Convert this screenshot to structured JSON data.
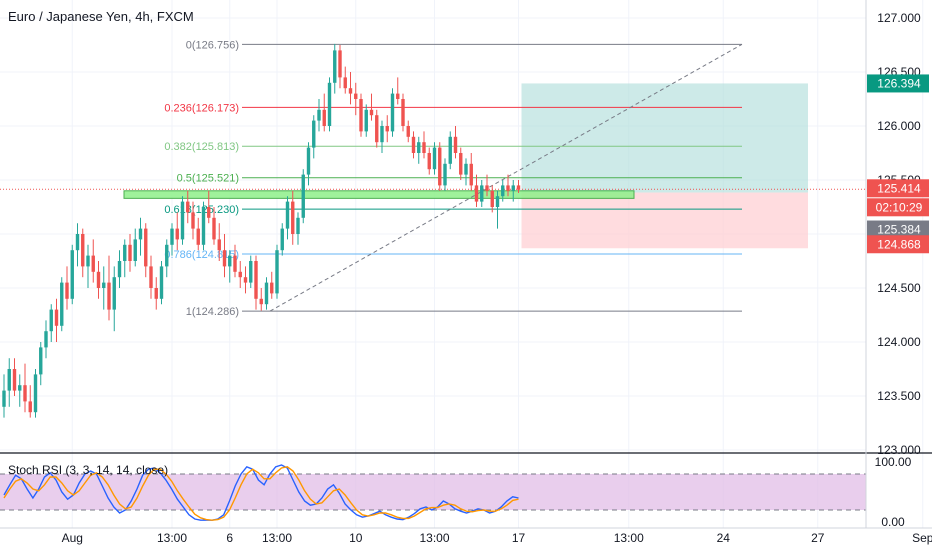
{
  "header": {
    "title": "Euro / Japanese Yen, 4h, FXCM"
  },
  "colors": {
    "bull": "#26a69a",
    "bear": "#ef5350",
    "fib_0": "#787b86",
    "fib_236": "#f23645",
    "fib_382": "#81c784",
    "fib_5": "#4caf50",
    "fib_618": "#089981",
    "fib_786": "#64b5f6",
    "fib_1": "#787b86",
    "profit_zone": "#b2dfdb",
    "loss_zone": "#ffcdd2",
    "support_zone": "#8ef08a",
    "stoch_k": "#2962ff",
    "stoch_d": "#ff9800",
    "stoch_band": "#e1bee7",
    "label_last": "#ef5350",
    "label_target": "#089981",
    "label_stop": "#ef5350",
    "label_entry": "#787b86"
  },
  "chart_data": [
    {
      "type": "candlestick",
      "title": "Euro / Japanese Yen, 4h, FXCM",
      "ylim": [
        122.95,
        127.15
      ],
      "y_ticks": [
        "127.000",
        "126.500",
        "126.000",
        "125.500",
        "125.000",
        "124.500",
        "124.000",
        "123.500",
        "123.000"
      ],
      "y_tick_values": [
        127.0,
        126.5,
        126.0,
        125.5,
        125.0,
        124.5,
        124.0,
        123.5,
        123.0
      ],
      "x_ticks": [
        "Aug",
        "13:00",
        "6",
        "13:00",
        "10",
        "13:00",
        "17",
        "13:00",
        "24",
        "27",
        "Sep"
      ],
      "x_tick_index": [
        13,
        32,
        43,
        52,
        67,
        82,
        98,
        119,
        137,
        155,
        175
      ],
      "candles": [
        [
          123.4,
          123.7,
          123.3,
          123.55
        ],
        [
          123.55,
          123.85,
          123.4,
          123.75
        ],
        [
          123.75,
          123.85,
          123.5,
          123.55
        ],
        [
          123.55,
          123.7,
          123.4,
          123.6
        ],
        [
          123.6,
          123.8,
          123.35,
          123.45
        ],
        [
          123.45,
          123.6,
          123.3,
          123.35
        ],
        [
          123.35,
          123.75,
          123.3,
          123.7
        ],
        [
          123.7,
          124.0,
          123.6,
          123.95
        ],
        [
          123.95,
          124.2,
          123.85,
          124.1
        ],
        [
          124.1,
          124.35,
          124.0,
          124.3
        ],
        [
          124.3,
          124.4,
          124.0,
          124.15
        ],
        [
          124.15,
          124.6,
          124.1,
          124.55
        ],
        [
          124.55,
          124.7,
          124.3,
          124.4
        ],
        [
          124.4,
          124.9,
          124.35,
          124.85
        ],
        [
          124.85,
          125.1,
          124.7,
          125.0
        ],
        [
          125.0,
          125.05,
          124.6,
          124.7
        ],
        [
          124.7,
          124.9,
          124.5,
          124.8
        ],
        [
          124.8,
          124.95,
          124.55,
          124.65
        ],
        [
          124.65,
          124.75,
          124.4,
          124.5
        ],
        [
          124.5,
          124.7,
          124.3,
          124.55
        ],
        [
          124.55,
          124.8,
          124.2,
          124.3
        ],
        [
          124.3,
          124.7,
          124.1,
          124.6
        ],
        [
          124.6,
          124.85,
          124.5,
          124.75
        ],
        [
          124.75,
          124.95,
          124.6,
          124.9
        ],
        [
          124.9,
          125.0,
          124.65,
          124.75
        ],
        [
          124.75,
          125.05,
          124.7,
          124.95
        ],
        [
          124.95,
          125.15,
          124.8,
          125.05
        ],
        [
          125.05,
          125.1,
          124.6,
          124.7
        ],
        [
          124.7,
          124.8,
          124.4,
          124.5
        ],
        [
          124.5,
          124.6,
          124.3,
          124.4
        ],
        [
          124.4,
          124.75,
          124.35,
          124.7
        ],
        [
          124.7,
          124.95,
          124.6,
          124.9
        ],
        [
          124.9,
          125.1,
          124.8,
          125.05
        ],
        [
          125.05,
          125.2,
          124.85,
          124.95
        ],
        [
          124.95,
          125.35,
          124.9,
          125.3
        ],
        [
          125.3,
          125.4,
          125.1,
          125.2
        ],
        [
          125.2,
          125.3,
          124.95,
          125.05
        ],
        [
          125.05,
          125.15,
          124.85,
          124.9
        ],
        [
          124.9,
          125.3,
          124.85,
          125.25
        ],
        [
          125.25,
          125.4,
          125.1,
          125.15
        ],
        [
          125.15,
          125.25,
          124.9,
          124.95
        ],
        [
          124.95,
          125.1,
          124.75,
          124.85
        ],
        [
          124.85,
          125.0,
          124.6,
          124.7
        ],
        [
          124.7,
          124.85,
          124.55,
          124.8
        ],
        [
          124.8,
          124.9,
          124.6,
          124.65
        ],
        [
          124.65,
          124.75,
          124.5,
          124.6
        ],
        [
          124.6,
          124.7,
          124.45,
          124.55
        ],
        [
          124.55,
          124.8,
          124.5,
          124.75
        ],
        [
          124.75,
          124.8,
          124.3,
          124.4
        ],
        [
          124.4,
          124.5,
          124.29,
          124.35
        ],
        [
          124.35,
          124.6,
          124.3,
          124.55
        ],
        [
          124.55,
          124.65,
          124.4,
          124.45
        ],
        [
          124.45,
          124.9,
          124.4,
          124.85
        ],
        [
          124.85,
          125.1,
          124.8,
          125.05
        ],
        [
          125.05,
          125.35,
          124.95,
          125.3
        ],
        [
          125.3,
          125.4,
          124.9,
          125.0
        ],
        [
          125.0,
          125.2,
          124.9,
          125.15
        ],
        [
          125.15,
          125.6,
          125.1,
          125.55
        ],
        [
          125.55,
          125.85,
          125.45,
          125.8
        ],
        [
          125.8,
          126.1,
          125.7,
          126.05
        ],
        [
          126.05,
          126.25,
          125.95,
          126.15
        ],
        [
          126.15,
          126.3,
          125.95,
          126.0
        ],
        [
          126.0,
          126.45,
          125.95,
          126.4
        ],
        [
          126.4,
          126.76,
          126.3,
          126.7
        ],
        [
          126.7,
          126.75,
          126.35,
          126.45
        ],
        [
          126.45,
          126.55,
          126.3,
          126.35
        ],
        [
          126.35,
          126.5,
          126.2,
          126.3
        ],
        [
          126.3,
          126.4,
          126.1,
          126.25
        ],
        [
          126.25,
          126.3,
          125.9,
          125.95
        ],
        [
          125.95,
          126.2,
          125.9,
          126.15
        ],
        [
          126.15,
          126.3,
          126.05,
          126.1
        ],
        [
          126.1,
          126.15,
          125.8,
          125.85
        ],
        [
          125.85,
          126.05,
          125.75,
          126.0
        ],
        [
          126.0,
          126.1,
          125.85,
          125.95
        ],
        [
          125.95,
          126.35,
          125.9,
          126.3
        ],
        [
          126.3,
          126.45,
          126.2,
          126.25
        ],
        [
          126.25,
          126.3,
          125.95,
          126.0
        ],
        [
          126.0,
          126.05,
          125.85,
          125.9
        ],
        [
          125.9,
          125.95,
          125.7,
          125.75
        ],
        [
          125.75,
          125.9,
          125.65,
          125.85
        ],
        [
          125.85,
          125.95,
          125.7,
          125.75
        ],
        [
          125.75,
          125.8,
          125.55,
          125.6
        ],
        [
          125.6,
          125.85,
          125.55,
          125.8
        ],
        [
          125.8,
          125.85,
          125.4,
          125.45
        ],
        [
          125.45,
          125.7,
          125.4,
          125.65
        ],
        [
          125.65,
          125.95,
          125.6,
          125.9
        ],
        [
          125.9,
          126.0,
          125.7,
          125.75
        ],
        [
          125.75,
          125.8,
          125.5,
          125.55
        ],
        [
          125.55,
          125.7,
          125.45,
          125.65
        ],
        [
          125.65,
          125.75,
          125.4,
          125.45
        ],
        [
          125.45,
          125.55,
          125.25,
          125.3
        ],
        [
          125.3,
          125.5,
          125.25,
          125.45
        ],
        [
          125.45,
          125.55,
          125.35,
          125.4
        ],
        [
          125.4,
          125.45,
          125.2,
          125.25
        ],
        [
          125.25,
          125.4,
          125.05,
          125.35
        ],
        [
          125.35,
          125.5,
          125.3,
          125.45
        ],
        [
          125.45,
          125.55,
          125.35,
          125.4
        ],
        [
          125.4,
          125.5,
          125.3,
          125.45
        ],
        [
          125.45,
          125.5,
          125.38,
          125.41
        ]
      ],
      "fib_levels": [
        {
          "ratio": "0",
          "price": 126.756,
          "label": "0(126.756)"
        },
        {
          "ratio": "0.236",
          "price": 126.173,
          "label": "0.236(126.173)"
        },
        {
          "ratio": "0.382",
          "price": 125.813,
          "label": "0.382(125.813)"
        },
        {
          "ratio": "0.5",
          "price": 125.521,
          "label": "0.5(125.521)"
        },
        {
          "ratio": "0.618",
          "price": 125.23,
          "label": "0.618(125.230)"
        },
        {
          "ratio": "0.786",
          "price": 124.815,
          "label": "0.786(124.815)"
        },
        {
          "ratio": "1",
          "price": 124.286,
          "label": "1(124.286)"
        }
      ],
      "support_zone": {
        "from": 125.33,
        "to": 125.4
      },
      "position": {
        "target": 126.394,
        "entry": 125.384,
        "stop": 124.868
      },
      "price_labels": {
        "last": "125.414",
        "countdown": "02:10:29",
        "target": "126.394",
        "entry": "125.384",
        "stop": "124.868"
      }
    },
    {
      "type": "line",
      "title": "Stoch RSI (3, 3, 14, 14, close)",
      "ylim": [
        -10,
        110
      ],
      "y_ticks": [
        "100.00",
        "0.00"
      ],
      "y_tick_values": [
        100,
        0
      ],
      "band": [
        20,
        80
      ],
      "series": [
        {
          "name": "K",
          "values": [
            45,
            62,
            78,
            72,
            55,
            40,
            55,
            75,
            82,
            70,
            50,
            38,
            45,
            65,
            80,
            85,
            80,
            60,
            40,
            25,
            15,
            20,
            35,
            55,
            78,
            88,
            90,
            82,
            70,
            55,
            38,
            25,
            12,
            5,
            3,
            3,
            3,
            5,
            12,
            35,
            60,
            80,
            92,
            88,
            70,
            62,
            80,
            92,
            95,
            90,
            70,
            50,
            35,
            28,
            30,
            40,
            55,
            62,
            48,
            30,
            20,
            12,
            8,
            10,
            14,
            18,
            12,
            8,
            5,
            4,
            8,
            14,
            22,
            25,
            20,
            25,
            35,
            30,
            22,
            18,
            15,
            18,
            22,
            20,
            15,
            18,
            25,
            35,
            42,
            40
          ]
        },
        {
          "name": "D",
          "values": [
            40,
            55,
            68,
            72,
            65,
            55,
            52,
            62,
            75,
            75,
            65,
            52,
            45,
            52,
            65,
            78,
            82,
            75,
            62,
            45,
            30,
            22,
            25,
            40,
            60,
            78,
            88,
            88,
            80,
            68,
            52,
            38,
            25,
            13,
            7,
            4,
            3,
            4,
            8,
            20,
            40,
            62,
            80,
            88,
            82,
            72,
            72,
            82,
            90,
            92,
            85,
            70,
            52,
            38,
            30,
            32,
            42,
            52,
            55,
            45,
            32,
            20,
            12,
            10,
            12,
            15,
            15,
            12,
            8,
            6,
            6,
            10,
            16,
            22,
            24,
            24,
            28,
            30,
            28,
            22,
            18,
            17,
            19,
            20,
            18,
            18,
            22,
            28,
            36,
            38
          ]
        }
      ]
    }
  ]
}
